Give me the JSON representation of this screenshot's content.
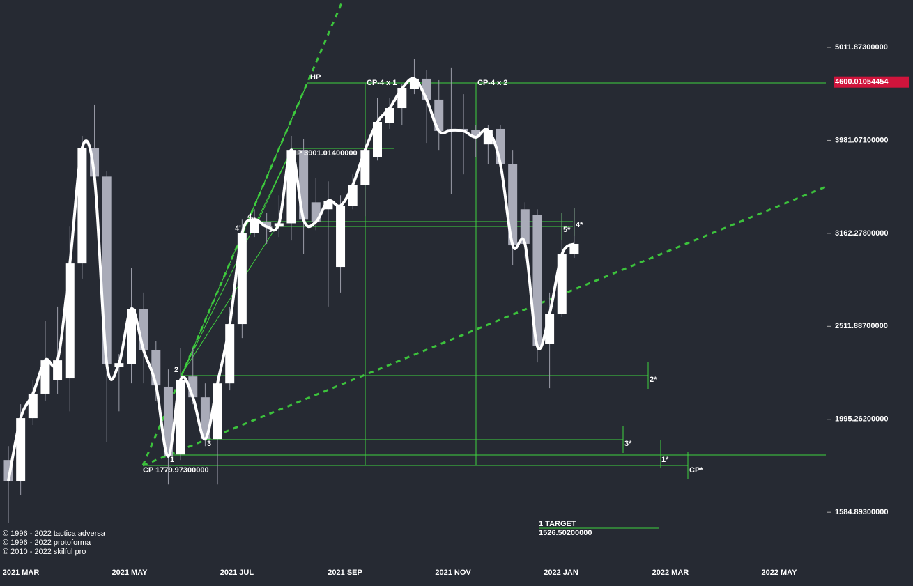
{
  "chart_data": {
    "type": "candlestick",
    "categories": [
      null,
      null,
      null,
      null,
      null,
      null,
      null,
      null,
      null,
      null,
      null,
      null,
      null,
      null,
      null,
      null,
      null,
      null,
      null,
      null,
      null,
      null,
      null,
      null,
      null,
      null,
      null,
      null,
      null,
      null,
      null,
      null,
      null,
      null,
      null,
      null,
      null,
      null,
      null,
      null,
      null,
      null,
      null,
      null,
      null,
      null,
      null
    ],
    "open": [
      1804,
      1713,
      2001,
      2126,
      2200,
      2208,
      2935,
      3908,
      3640,
      2270,
      2289,
      2624,
      2366,
      2163,
      1829,
      2219,
      2107,
      1900,
      2181,
      2526,
      3162,
      3253,
      3215,
      3242,
      3888,
      3415,
      3357,
      2910,
      3386,
      3566,
      3821,
      4153,
      4313,
      4519,
      4638,
      4404,
      4096,
      4096,
      4082,
      3942,
      4096,
      3755,
      3357,
      3310,
      2407,
      2592,
      3002
    ],
    "high": [
      1867,
      2071,
      2200,
      2548,
      2638,
      3215,
      4026,
      4351,
      3691,
      2345,
      2900,
      2731,
      2420,
      2258,
      2378,
      2378,
      2181,
      2227,
      2638,
      3271,
      3357,
      3328,
      3475,
      4026,
      3991,
      3628,
      3597,
      3475,
      3660,
      3991,
      4426,
      4426,
      4581,
      4868,
      4742,
      4622,
      4768,
      4464,
      4131,
      4131,
      4131,
      3888,
      3415,
      3357,
      2731,
      3328,
      3368
    ],
    "low": [
      1545,
      1655,
      1967,
      2089,
      2126,
      2035,
      2827,
      3584,
      1884,
      2035,
      2181,
      2181,
      2089,
      1698,
      1804,
      2071,
      1867,
      1698,
      2144,
      2440,
      3134,
      3081,
      3134,
      3107,
      3002,
      3187,
      2638,
      2731,
      3357,
      3299,
      3788,
      4096,
      4131,
      4464,
      3956,
      3888,
      3487,
      3660,
      3821,
      3755,
      3691,
      2925,
      2976,
      2297,
      2155,
      2570,
      2976
    ],
    "close": [
      1713,
      2001,
      2126,
      2309,
      2309,
      2935,
      3908,
      3640,
      2289,
      2293,
      2624,
      2366,
      2170,
      1820,
      2200,
      2107,
      1900,
      2181,
      2526,
      3162,
      3271,
      3215,
      3242,
      3888,
      3271,
      3253,
      3427,
      3386,
      3566,
      3888,
      4167,
      4313,
      4527,
      4638,
      4404,
      4075,
      4082,
      4075,
      4012,
      4082,
      3755,
      3070,
      3081,
      2391,
      2592,
      3002,
      3081
    ],
    "up_color": "#ffffff",
    "down_color": "#a9abb8",
    "line_color": "#ffffff",
    "log_scale": true,
    "ylim": [
      1405,
      5636
    ],
    "yticks": [
      {
        "value": 5011.873,
        "label": "5011.87300000"
      },
      {
        "value": 3981.071,
        "label": "3981.07100000"
      },
      {
        "value": 3162.278,
        "label": "3162.27800000"
      },
      {
        "value": 2511.887,
        "label": "2511.88700000"
      },
      {
        "value": 1995.262,
        "label": "1995.26200000"
      },
      {
        "value": 1584.893,
        "label": "1584.89300000"
      }
    ],
    "xticks": [
      {
        "value": 1.02,
        "label": "2021 MAR"
      },
      {
        "value": 9.86,
        "label": "2021 MAY"
      },
      {
        "value": 18.58,
        "label": "2021 JUL"
      },
      {
        "value": 27.37,
        "label": "2021 SEP"
      },
      {
        "value": 36.15,
        "label": "2021 NOV"
      },
      {
        "value": 44.93,
        "label": "2022 JAN"
      },
      {
        "value": 53.82,
        "label": "2022 MAR"
      },
      {
        "value": 62.66,
        "label": "2022 MAY"
      }
    ],
    "last_price": {
      "value": 4600.01054454,
      "label": "4600.01054454"
    },
    "annotations": [
      "HP",
      "CP-4 x 1",
      "CP-4 x 2",
      "HP 3901.01400000",
      "4'",
      "4..",
      "5",
      "4*",
      "5*",
      "2",
      "2*",
      "3",
      "3*",
      "1",
      "1*",
      "CP 1779.97300000",
      "CP*",
      "1 TARGET",
      "1526.50200000"
    ]
  },
  "copyright": [
    "© 1996 - 2022 tactica adversa",
    "© 1996 - 2022 protoforma",
    "© 2010 - 2022 skilful pro"
  ]
}
